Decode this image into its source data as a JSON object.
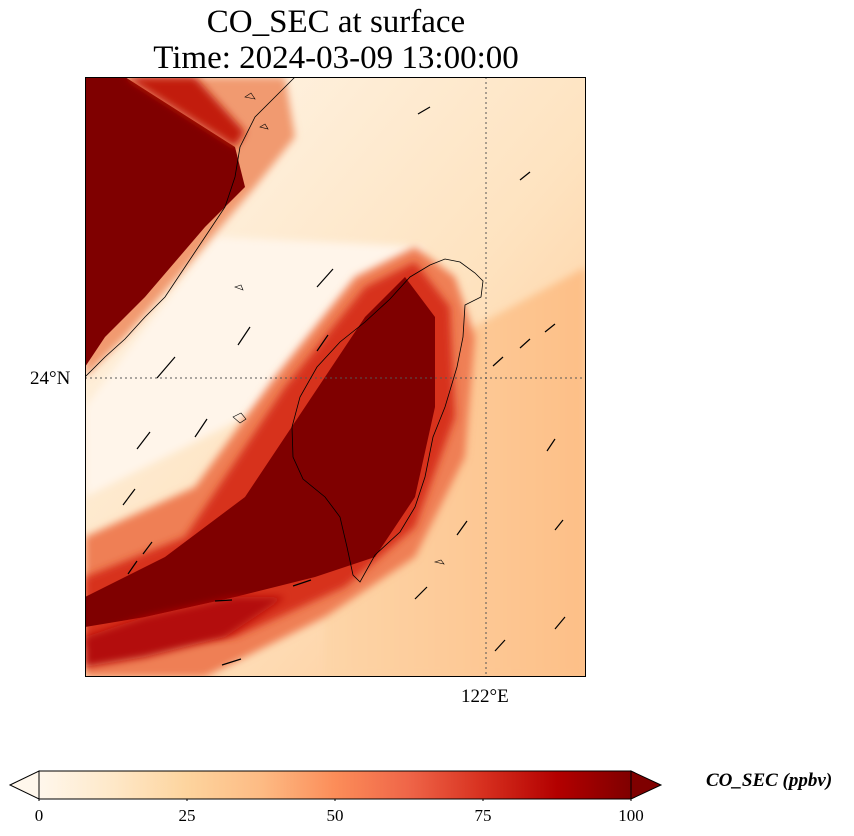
{
  "title_line1": "CO_SEC at surface",
  "title_line2": "Time: 2024-03-09 13:00:00",
  "lat_tick": "24°N",
  "lon_tick": "122°E",
  "colorbar": {
    "label": "CO_SEC (ppbv)",
    "min": 0,
    "max": 100,
    "ticks": [
      "0",
      "25",
      "50",
      "75",
      "100"
    ],
    "colormap": "OrRd",
    "extend": "both"
  },
  "colors": {
    "low": "#fff7ec",
    "high": "#7f0000"
  },
  "map_features": [
    "coastline",
    "wind-vectors",
    "lat-lon-gridlines"
  ]
}
